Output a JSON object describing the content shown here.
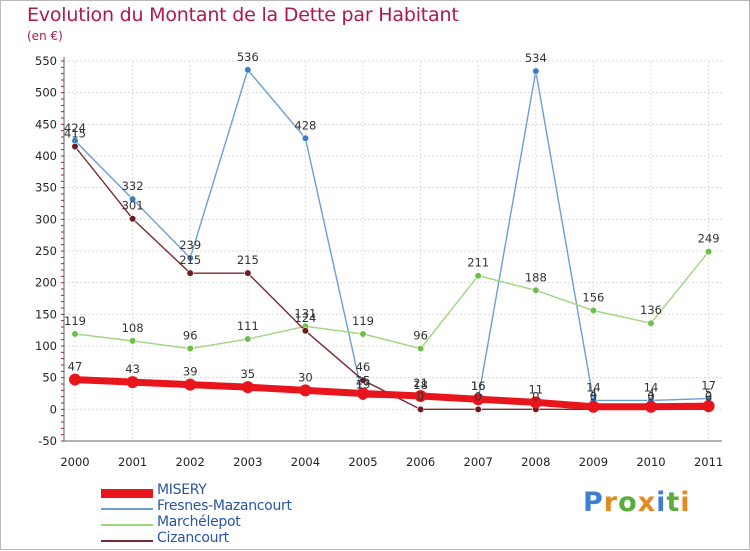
{
  "header": {
    "title": "Evolution du Montant de la Dette par Habitant",
    "subtitle": "(en €)"
  },
  "logo": {
    "letters": [
      "P",
      "r",
      "o",
      "x",
      "i",
      "t",
      "i"
    ],
    "colors": [
      "#3f7fd1",
      "#e58a1e",
      "#5aae3c",
      "#e58a1e",
      "#3f7fd1",
      "#5aae3c",
      "#e58a1e"
    ]
  },
  "chart_data": {
    "type": "line",
    "title": "Evolution du Montant de la Dette par Habitant",
    "subtitle": "(en €)",
    "xlabel": "",
    "ylabel": "",
    "x": [
      "2000",
      "2001",
      "2002",
      "2003",
      "2004",
      "2005",
      "2006",
      "2007",
      "2008",
      "2009",
      "2010",
      "2011"
    ],
    "yticks": [
      -50,
      0,
      50,
      100,
      150,
      200,
      250,
      300,
      350,
      400,
      450,
      500,
      550
    ],
    "ylim": [
      -50,
      550
    ],
    "grid": true,
    "legend_position": "bottom-left",
    "series": [
      {
        "name": "Fresnes-Mazancourt",
        "color": "#6b9fd4",
        "marker": "#3d7fc6",
        "values": [
          424,
          332,
          239,
          536,
          428,
          19,
          18,
          16,
          534,
          14,
          14,
          17
        ],
        "labels": [
          "424",
          "332",
          "239",
          "536",
          "428",
          "19",
          "18",
          "16",
          "534",
          "14",
          "14",
          "17"
        ]
      },
      {
        "name": "Marchélepot",
        "color": "#9dd67e",
        "marker": "#6cc04a",
        "values": [
          119,
          108,
          96,
          111,
          131,
          119,
          96,
          211,
          188,
          156,
          136,
          249
        ],
        "labels": [
          "119",
          "108",
          "96",
          "111",
          "131",
          "119",
          "96",
          "211",
          "188",
          "156",
          "136",
          "249"
        ]
      },
      {
        "name": "Cizancourt",
        "color": "#7a2a32",
        "marker": "#6e1a22",
        "values": [
          415,
          301,
          215,
          215,
          124,
          46,
          0,
          0,
          0,
          0,
          0,
          0
        ],
        "labels": [
          "415",
          "301",
          "215",
          "215",
          "124",
          "46",
          "0",
          "0",
          "0",
          "0",
          "0",
          "0"
        ]
      },
      {
        "name": "MISERY",
        "color": "#e8161c",
        "marker": "#e8161c",
        "values": [
          47,
          43,
          39,
          35,
          30,
          25,
          21,
          16,
          11,
          4,
          4,
          5
        ],
        "labels": [
          "47",
          "43",
          "39",
          "35",
          "30",
          "25",
          "21",
          "16",
          "11",
          "4",
          "4",
          "5"
        ]
      }
    ]
  }
}
